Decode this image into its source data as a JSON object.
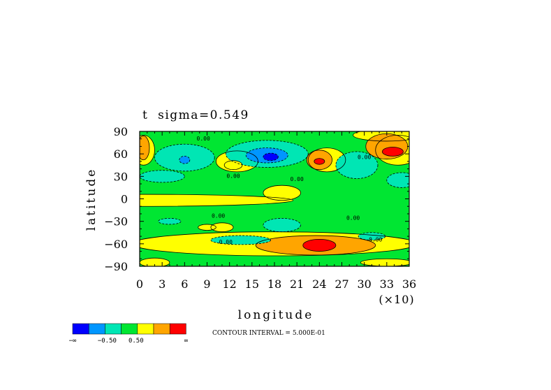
{
  "chart_data": {
    "type": "heatmap",
    "title": "t  sigma=0.549",
    "xlabel": "longitude",
    "ylabel": "latitude",
    "xlim": [
      0,
      360
    ],
    "ylim": [
      -90,
      90
    ],
    "x_ticks": [
      "0",
      "3",
      "6",
      "9",
      "12",
      "15",
      "18",
      "21",
      "24",
      "27",
      "30",
      "33",
      "36"
    ],
    "x_tick_values": [
      0,
      30,
      60,
      90,
      120,
      150,
      180,
      210,
      240,
      270,
      300,
      330,
      360
    ],
    "x_scale_note": "(×10)",
    "y_ticks": [
      "90",
      "60",
      "30",
      "0",
      "−30",
      "−60",
      "−90"
    ],
    "y_tick_values": [
      90,
      60,
      30,
      0,
      -30,
      -60,
      -90
    ],
    "contour_interval": "CONTOUR INTERVAL = 5.000E-01",
    "contour_labels": [
      "0.00",
      "0.00",
      "0.00",
      "0.00",
      "0.00",
      "0.00",
      "0.00",
      "0.00"
    ],
    "colorbar": {
      "colors": [
        "#0000ff",
        "#0096ff",
        "#00e6b4",
        "#00e632",
        "#ffff00",
        "#ffa500",
        "#ff0000"
      ],
      "labels": [
        "−∞",
        "−0.50",
        "0.50",
        "∞"
      ]
    },
    "palette": {
      "background": "#00e632",
      "neutral_band": "#ffff00",
      "cold_strong": "#0000ff",
      "cold_mid": "#0096ff",
      "cold_weak": "#00e6b4",
      "warm_mid": "#ffa500",
      "warm_strong": "#ff0000"
    },
    "regions": [
      {
        "level": "neutral_band",
        "cx": 5,
        "cy": -2,
        "rx": 200,
        "ry": 8
      },
      {
        "level": "neutral_band",
        "cx": 190,
        "cy": 8,
        "rx": 25,
        "ry": 10
      },
      {
        "level": "neutral_band",
        "cx": 180,
        "cy": -60,
        "rx": 190,
        "ry": 16
      },
      {
        "level": "neutral_band",
        "cx": 130,
        "cy": 50,
        "rx": 28,
        "ry": 14
      },
      {
        "level": "neutral_band",
        "cx": 250,
        "cy": 52,
        "rx": 25,
        "ry": 16
      },
      {
        "level": "neutral_band",
        "cx": 345,
        "cy": 65,
        "rx": 30,
        "ry": 20
      },
      {
        "level": "neutral_band",
        "cx": 5,
        "cy": 65,
        "rx": 15,
        "ry": 20
      },
      {
        "level": "neutral_band",
        "cx": 330,
        "cy": 85,
        "rx": 45,
        "ry": 8
      },
      {
        "level": "neutral_band",
        "cx": 20,
        "cy": -85,
        "rx": 20,
        "ry": 6
      },
      {
        "level": "neutral_band",
        "cx": 330,
        "cy": -85,
        "rx": 35,
        "ry": 5
      },
      {
        "level": "warm_mid",
        "cx": 235,
        "cy": -62,
        "rx": 80,
        "ry": 13
      },
      {
        "level": "warm_mid",
        "cx": 330,
        "cy": 70,
        "rx": 28,
        "ry": 17
      },
      {
        "level": "warm_mid",
        "cx": 5,
        "cy": 68,
        "rx": 8,
        "ry": 16
      },
      {
        "level": "warm_mid",
        "cx": 240,
        "cy": 52,
        "rx": 17,
        "ry": 13
      },
      {
        "level": "warm_strong",
        "cx": 240,
        "cy": -62,
        "rx": 22,
        "ry": 8
      },
      {
        "level": "warm_strong",
        "cx": 338,
        "cy": 63,
        "rx": 14,
        "ry": 6
      },
      {
        "level": "warm_strong",
        "cx": 240,
        "cy": 50,
        "rx": 7,
        "ry": 4
      },
      {
        "level": "cold_weak",
        "cx": 170,
        "cy": 60,
        "rx": 55,
        "ry": 18
      },
      {
        "level": "cold_weak",
        "cx": 60,
        "cy": 55,
        "rx": 40,
        "ry": 18
      },
      {
        "level": "cold_weak",
        "cx": 290,
        "cy": 45,
        "rx": 28,
        "ry": 18
      },
      {
        "level": "cold_weak",
        "cx": 30,
        "cy": 30,
        "rx": 30,
        "ry": 8
      },
      {
        "level": "cold_weak",
        "cx": 350,
        "cy": 25,
        "rx": 20,
        "ry": 10
      },
      {
        "level": "cold_weak",
        "cx": 190,
        "cy": -35,
        "rx": 25,
        "ry": 9
      },
      {
        "level": "cold_weak",
        "cx": 135,
        "cy": -55,
        "rx": 40,
        "ry": 6
      },
      {
        "level": "cold_weak",
        "cx": 310,
        "cy": -50,
        "rx": 18,
        "ry": 5
      },
      {
        "level": "cold_weak",
        "cx": 40,
        "cy": -30,
        "rx": 15,
        "ry": 4
      },
      {
        "level": "cold_mid",
        "cx": 170,
        "cy": 58,
        "rx": 28,
        "ry": 10
      },
      {
        "level": "cold_mid",
        "cx": 60,
        "cy": 52,
        "rx": 7,
        "ry": 5
      },
      {
        "level": "cold_strong",
        "cx": 175,
        "cy": 56,
        "rx": 10,
        "ry": 5
      },
      {
        "level": "neutral_band",
        "cx": 110,
        "cy": -38,
        "rx": 15,
        "ry": 6
      },
      {
        "level": "neutral_band",
        "cx": 90,
        "cy": -38,
        "rx": 12,
        "ry": 4
      },
      {
        "level": "neutral_band",
        "cx": 125,
        "cy": 45,
        "rx": 12,
        "ry": 6
      }
    ]
  }
}
